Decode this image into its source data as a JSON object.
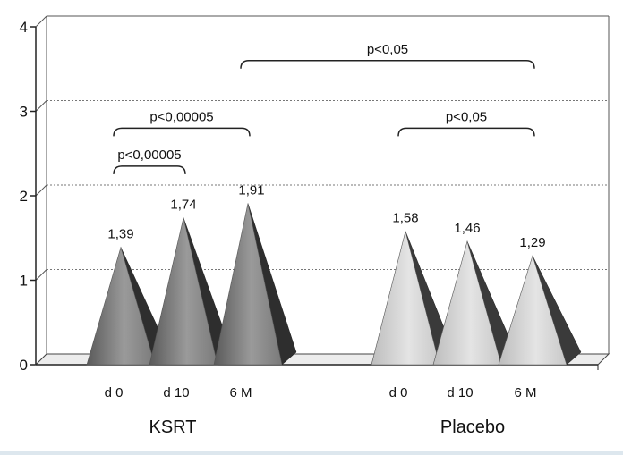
{
  "chart_data": {
    "type": "bar",
    "mark": "pyramid-3d",
    "ylim": [
      0,
      4
    ],
    "yticks": [
      "0",
      "1",
      "2",
      "3",
      "4"
    ],
    "grid": true,
    "groups": [
      {
        "label": "KSRT",
        "color": "#808080",
        "categories": [
          "d 0",
          "d 10",
          "6 M"
        ],
        "values": [
          1.39,
          1.74,
          1.91
        ],
        "value_labels": [
          "1,39",
          "1,74",
          "1,91"
        ]
      },
      {
        "label": "Placebo",
        "color": "#cfcfcf",
        "categories": [
          "d 0",
          "d 10",
          "6 M"
        ],
        "values": [
          1.58,
          1.46,
          1.29
        ],
        "value_labels": [
          "1,58",
          "1,46",
          "1,29"
        ]
      }
    ],
    "annotations": [
      {
        "text": "p<0,00005",
        "from": [
          0,
          0
        ],
        "to": [
          0,
          1
        ],
        "y": 2.35
      },
      {
        "text": "p<0,00005",
        "from": [
          0,
          0
        ],
        "to": [
          0,
          2
        ],
        "y": 2.8
      },
      {
        "text": "p<0,05",
        "from": [
          0,
          2
        ],
        "to": [
          1,
          2
        ],
        "y": 3.6
      },
      {
        "text": "p<0,05",
        "from": [
          1,
          0
        ],
        "to": [
          1,
          2
        ],
        "y": 2.8
      }
    ]
  }
}
